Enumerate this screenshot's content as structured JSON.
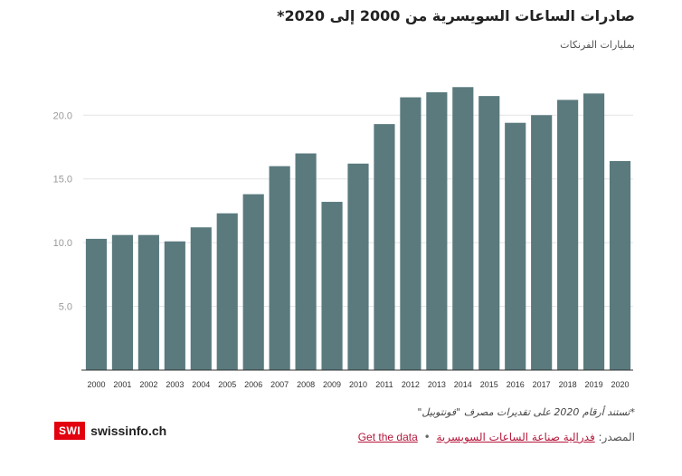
{
  "header": {
    "title": "صادرات الساعات السويسرية من 2000 إلى 2020*",
    "subtitle": "بمليارات الفرنكات"
  },
  "footer": {
    "note": "*تستند أرقام 2020 على تقديرات مصرف \"فونتوبيل\"",
    "source_label": "المصدر:",
    "source_name": "فدرالية صناعة الساعات السويسرية",
    "separator": "•",
    "get_data": "Get the data",
    "logo_box": "SWI",
    "logo_text": "swissinfo.ch"
  },
  "chart_data": {
    "type": "bar",
    "title": "صادرات الساعات السويسرية من 2000 إلى 2020*",
    "ylabel": "بمليارات الفرنكات",
    "categories": [
      "2000",
      "2001",
      "2002",
      "2003",
      "2004",
      "2005",
      "2006",
      "2007",
      "2008",
      "2009",
      "2010",
      "2011",
      "2012",
      "2013",
      "2014",
      "2015",
      "2016",
      "2017",
      "2018",
      "2019",
      "2020"
    ],
    "values": [
      10.3,
      10.6,
      10.6,
      10.1,
      11.2,
      12.3,
      13.8,
      16.0,
      17.0,
      13.2,
      16.2,
      19.3,
      21.4,
      21.8,
      22.2,
      21.5,
      19.4,
      20.0,
      21.2,
      21.7,
      16.4
    ],
    "yticks": [
      "5.0",
      "10.0",
      "15.0",
      "20.0"
    ],
    "ylim": [
      0,
      23
    ],
    "grid": true,
    "bar_color": "#5a7a7e"
  }
}
